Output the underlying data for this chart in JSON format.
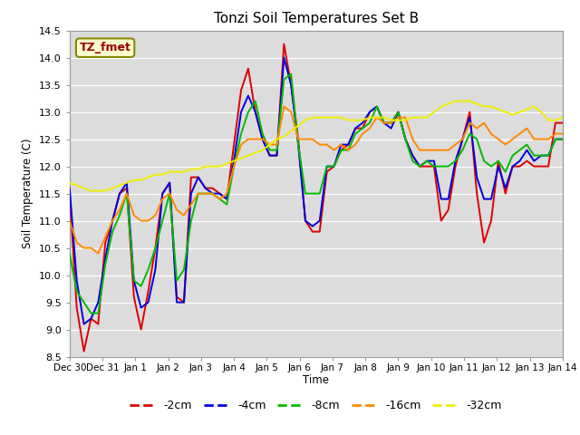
{
  "title": "Tonzi Soil Temperatures Set B",
  "xlabel": "Time",
  "ylabel": "Soil Temperature (C)",
  "ylim": [
    8.5,
    14.5
  ],
  "xlim": [
    0,
    15
  ],
  "annotation": "TZ_fmet",
  "bg_color": "#dcdcdc",
  "series_colors": {
    "-2cm": "#dd0000",
    "-4cm": "#0000dd",
    "-8cm": "#00bb00",
    "-16cm": "#ff8800",
    "-32cm": "#eeee00"
  },
  "xtick_labels": [
    "Dec 30",
    "Dec 31",
    "Jan 1",
    "Jan 2",
    "Jan 3",
    "Jan 4",
    "Jan 5",
    "Jan 6",
    "Jan 7",
    "Jan 8",
    "Jan 9",
    "Jan 10",
    "Jan 11",
    "Jan 12",
    "Jan 13",
    "Jan 14"
  ],
  "xtick_positions": [
    0,
    1,
    2,
    3,
    4,
    5,
    6,
    7,
    8,
    9,
    10,
    11,
    12,
    13,
    14,
    15
  ],
  "data_2cm": [
    11.5,
    9.4,
    8.6,
    9.2,
    9.1,
    10.6,
    11.0,
    11.5,
    11.6,
    9.6,
    9.0,
    9.7,
    10.5,
    11.5,
    11.7,
    9.6,
    9.5,
    11.8,
    11.8,
    11.6,
    11.6,
    11.5,
    11.4,
    12.4,
    13.4,
    13.8,
    13.0,
    12.5,
    12.2,
    12.2,
    14.25,
    13.5,
    12.5,
    11.0,
    10.8,
    10.8,
    11.9,
    12.0,
    12.3,
    12.4,
    12.7,
    12.7,
    13.0,
    13.1,
    12.8,
    12.8,
    13.0,
    12.5,
    12.2,
    12.0,
    12.0,
    12.0,
    11.0,
    11.2,
    12.0,
    12.5,
    13.0,
    11.5,
    10.6,
    11.0,
    12.1,
    11.5,
    12.0,
    12.0,
    12.1,
    12.0,
    12.0,
    12.0,
    12.8,
    12.8
  ],
  "data_4cm": [
    11.6,
    9.9,
    9.1,
    9.2,
    9.5,
    10.3,
    11.0,
    11.5,
    11.7,
    9.9,
    9.4,
    9.5,
    10.1,
    11.5,
    11.7,
    9.5,
    9.5,
    11.5,
    11.8,
    11.6,
    11.5,
    11.5,
    11.4,
    12.1,
    13.0,
    13.3,
    13.0,
    12.5,
    12.2,
    12.2,
    14.0,
    13.5,
    12.4,
    11.0,
    10.9,
    11.0,
    12.0,
    12.0,
    12.4,
    12.4,
    12.7,
    12.8,
    13.0,
    13.1,
    12.8,
    12.7,
    13.0,
    12.5,
    12.2,
    12.0,
    12.1,
    12.1,
    11.4,
    11.4,
    12.1,
    12.5,
    12.9,
    11.8,
    11.4,
    11.4,
    12.0,
    11.6,
    12.0,
    12.1,
    12.3,
    12.1,
    12.2,
    12.2,
    12.5,
    12.5
  ],
  "data_8cm": [
    10.4,
    9.7,
    9.5,
    9.3,
    9.3,
    10.2,
    10.8,
    11.1,
    11.5,
    9.9,
    9.8,
    10.1,
    10.5,
    11.0,
    11.5,
    9.9,
    10.1,
    11.0,
    11.5,
    11.5,
    11.5,
    11.4,
    11.3,
    12.0,
    12.6,
    13.0,
    13.2,
    12.6,
    12.3,
    12.3,
    13.6,
    13.7,
    12.4,
    11.5,
    11.5,
    11.5,
    12.0,
    12.0,
    12.3,
    12.3,
    12.6,
    12.7,
    12.8,
    13.1,
    12.8,
    12.8,
    13.0,
    12.5,
    12.1,
    12.0,
    12.1,
    12.0,
    12.0,
    12.0,
    12.1,
    12.3,
    12.6,
    12.5,
    12.1,
    12.0,
    12.1,
    11.9,
    12.2,
    12.3,
    12.4,
    12.2,
    12.2,
    12.2,
    12.5,
    12.5
  ],
  "data_16cm": [
    11.0,
    10.6,
    10.5,
    10.5,
    10.4,
    10.7,
    11.0,
    11.2,
    11.5,
    11.1,
    11.0,
    11.0,
    11.1,
    11.4,
    11.5,
    11.2,
    11.1,
    11.3,
    11.5,
    11.5,
    11.5,
    11.4,
    11.5,
    12.0,
    12.4,
    12.5,
    12.5,
    12.5,
    12.4,
    12.4,
    13.1,
    13.0,
    12.5,
    12.5,
    12.5,
    12.4,
    12.4,
    12.3,
    12.4,
    12.3,
    12.4,
    12.6,
    12.7,
    12.9,
    12.8,
    12.8,
    12.9,
    12.9,
    12.5,
    12.3,
    12.3,
    12.3,
    12.3,
    12.3,
    12.4,
    12.5,
    12.8,
    12.7,
    12.8,
    12.6,
    12.5,
    12.4,
    12.5,
    12.6,
    12.7,
    12.5,
    12.5,
    12.5,
    12.6,
    12.6
  ],
  "data_32cm": [
    11.7,
    11.65,
    11.6,
    11.55,
    11.55,
    11.55,
    11.6,
    11.65,
    11.7,
    11.75,
    11.75,
    11.8,
    11.85,
    11.85,
    11.9,
    11.9,
    11.9,
    11.95,
    11.95,
    12.0,
    12.0,
    12.0,
    12.05,
    12.1,
    12.15,
    12.2,
    12.25,
    12.3,
    12.4,
    12.5,
    12.55,
    12.65,
    12.75,
    12.85,
    12.9,
    12.9,
    12.9,
    12.9,
    12.9,
    12.85,
    12.85,
    12.85,
    12.9,
    12.9,
    12.9,
    12.85,
    12.85,
    12.85,
    12.9,
    12.9,
    12.9,
    13.0,
    13.1,
    13.15,
    13.2,
    13.2,
    13.2,
    13.15,
    13.1,
    13.1,
    13.05,
    13.0,
    12.95,
    13.0,
    13.05,
    13.1,
    13.0,
    12.85,
    12.85,
    12.9
  ]
}
